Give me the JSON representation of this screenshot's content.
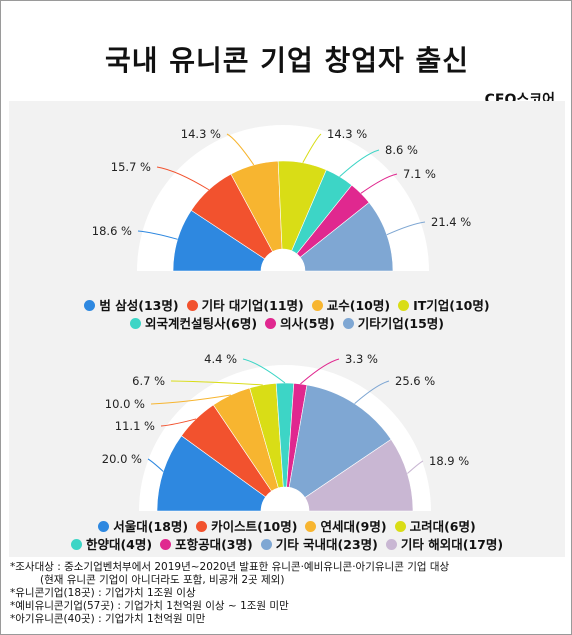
{
  "title": "국내 유니콘 기업 창업자 출신",
  "brand": "CEO스코어",
  "chart_data": [
    {
      "type": "pie",
      "subtype": "semi-donut",
      "categories": [
        "범 삼성(13명)",
        "기타 대기업(11명)",
        "교수(10명)",
        "IT기업(10명)",
        "외국계컨설팅사(6명)",
        "의사(5명)",
        "기타기업(15명)"
      ],
      "values": [
        18.6,
        15.7,
        14.3,
        14.3,
        8.6,
        7.1,
        21.4
      ],
      "labels": [
        "18.6 %",
        "15.7 %",
        "14.3 %",
        "14.3 %",
        "8.6 %",
        "7.1 %",
        "21.4 %"
      ],
      "colors": [
        "#2e88e0",
        "#f2522e",
        "#f7b530",
        "#d9dd16",
        "#3dd5c6",
        "#e0288f",
        "#7fa7d3"
      ],
      "legend_rows": [
        [
          0,
          1,
          2,
          3
        ],
        [
          4,
          5,
          6
        ]
      ]
    },
    {
      "type": "pie",
      "subtype": "semi-donut",
      "categories": [
        "서울대(18명)",
        "카이스트(10명)",
        "연세대(9명)",
        "고려대(6명)",
        "한양대(4명)",
        "포항공대(3명)",
        "기타 국내대(23명)",
        "기타 해외대(17명)"
      ],
      "values": [
        20.0,
        11.1,
        10.0,
        6.7,
        4.4,
        3.3,
        25.6,
        18.9
      ],
      "labels": [
        "20.0 %",
        "11.1 %",
        "10.0 %",
        "6.7 %",
        "4.4 %",
        "3.3 %",
        "25.6 %",
        "18.9 %"
      ],
      "colors": [
        "#2e88e0",
        "#f2522e",
        "#f7b530",
        "#d9dd16",
        "#3dd5c6",
        "#e0288f",
        "#7fa7d3",
        "#c9b7d3"
      ],
      "legend_rows": [
        [
          0,
          1,
          2,
          3
        ],
        [
          4,
          5,
          6,
          7
        ]
      ]
    }
  ],
  "notes": [
    "*조사대상 : 중소기업벤처부에서 2019년~2020년 발표한 유니콘·예비유니콘·아기유니콘 기업 대상",
    "(현재 유니콘 기업이 아니더라도 포함, 비공개 2곳 제외)",
    "*유니콘기업(18곳) : 기업가치 1조원 이상",
    "*예비유니콘기업(57곳) : 기업가치 1천억원 이상 ~ 1조원 미만",
    "*아기유니콘(40곳) : 기업가치 1천억원 미만"
  ]
}
